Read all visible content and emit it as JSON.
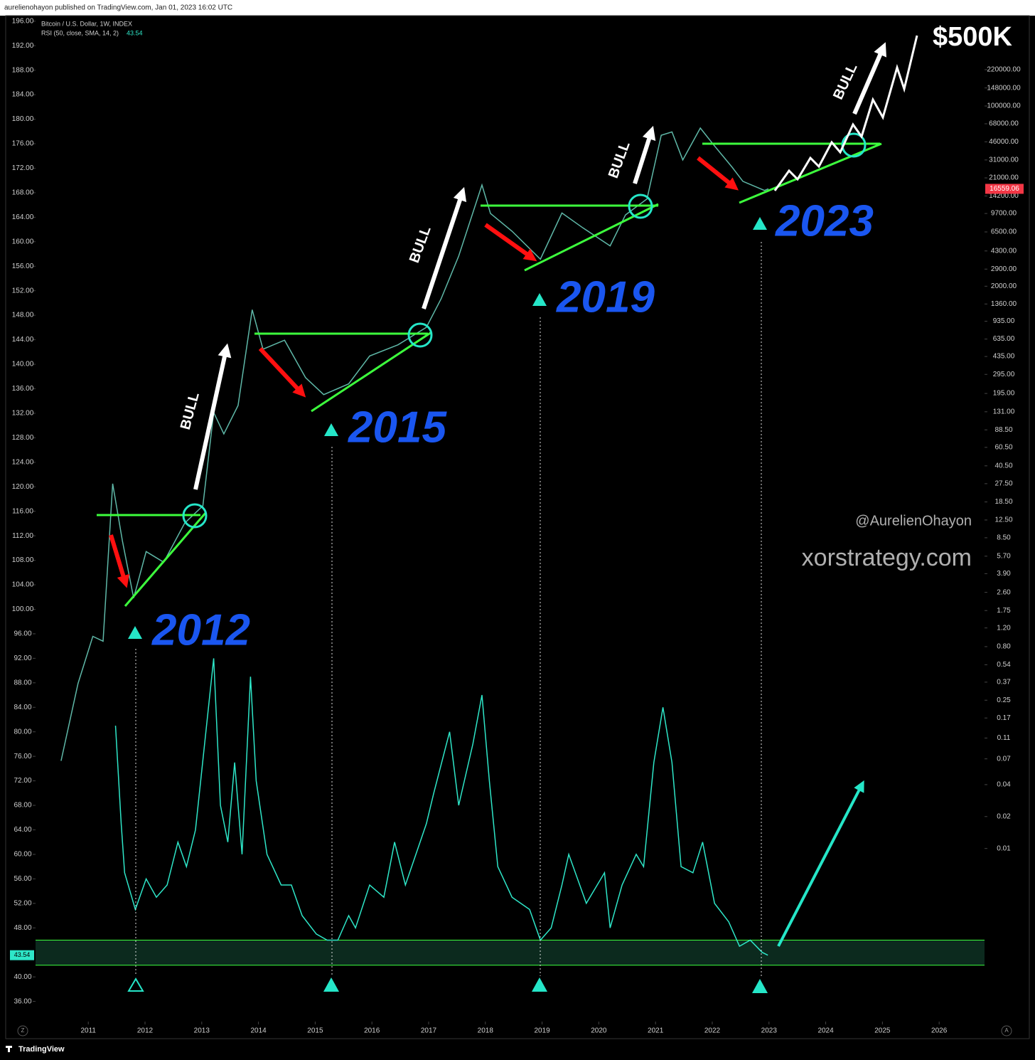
{
  "header": "aurelienohayon published on TradingView.com, Jan 01, 2023 16:02 UTC",
  "brand": "TradingView",
  "corner_buttons": [
    "Z",
    "A"
  ],
  "chart_data": {
    "type": "line",
    "xlim": [
      2010.07,
      2026.8
    ],
    "xticks": [
      2011,
      2012,
      2013,
      2014,
      2015,
      2016,
      2017,
      2018,
      2019,
      2020,
      2021,
      2022,
      2023,
      2024,
      2025,
      2026
    ],
    "ylim": [
      33.4,
      196.9
    ],
    "yticks": [
      {
        "value": 196,
        "label": "196.00"
      },
      {
        "value": 192,
        "label": "192.00"
      },
      {
        "value": 188,
        "label": "188.00"
      },
      {
        "value": 184,
        "label": "184.00"
      },
      {
        "value": 180,
        "label": "180.00"
      },
      {
        "value": 176,
        "label": "176.00"
      },
      {
        "value": 172,
        "label": "172.00"
      },
      {
        "value": 168,
        "label": "168.00"
      },
      {
        "value": 164,
        "label": "164.00"
      },
      {
        "value": 160,
        "label": "160.00"
      },
      {
        "value": 156,
        "label": "156.00"
      },
      {
        "value": 152,
        "label": "152.00"
      },
      {
        "value": 148,
        "label": "148.00"
      },
      {
        "value": 144,
        "label": "144.00"
      },
      {
        "value": 140,
        "label": "140.00"
      },
      {
        "value": 136,
        "label": "136.00"
      },
      {
        "value": 132,
        "label": "132.00"
      },
      {
        "value": 128,
        "label": "128.00"
      },
      {
        "value": 124,
        "label": "124.00"
      },
      {
        "value": 120,
        "label": "120.00"
      },
      {
        "value": 116,
        "label": "116.00"
      },
      {
        "value": 112,
        "label": "112.00"
      },
      {
        "value": 108,
        "label": "108.00"
      },
      {
        "value": 104,
        "label": "104.00"
      },
      {
        "value": 100,
        "label": "100.00"
      },
      {
        "value": 96,
        "label": "96.00"
      },
      {
        "value": 92,
        "label": "92.00"
      },
      {
        "value": 88,
        "label": "88.00"
      },
      {
        "value": 84,
        "label": "84.00"
      },
      {
        "value": 80,
        "label": "80.00"
      },
      {
        "value": 76,
        "label": "76.00"
      },
      {
        "value": 72,
        "label": "72.00"
      },
      {
        "value": 68,
        "label": "68.00"
      },
      {
        "value": 64,
        "label": "64.00"
      },
      {
        "value": 60,
        "label": "60.00"
      },
      {
        "value": 56,
        "label": "56.00"
      },
      {
        "value": 52,
        "label": "52.00"
      },
      {
        "value": 48,
        "label": "48.00"
      },
      {
        "value": 40,
        "label": "40.00"
      },
      {
        "value": 36,
        "label": "36.00"
      }
    ],
    "y2lim": [
      0.000256,
      711000
    ],
    "y2log": true,
    "y2ticks": [
      {
        "value": 220000,
        "label": "220000.00"
      },
      {
        "value": 148000,
        "label": "148000.00"
      },
      {
        "value": 100000,
        "label": "100000.00"
      },
      {
        "value": 68000,
        "label": "68000.00"
      },
      {
        "value": 46000,
        "label": "46000.00"
      },
      {
        "value": 31000,
        "label": "31000.00"
      },
      {
        "value": 21000,
        "label": "21000.00"
      },
      {
        "value": 14200,
        "label": "14200.00"
      },
      {
        "value": 9700,
        "label": "9700.00"
      },
      {
        "value": 6500,
        "label": "6500.00"
      },
      {
        "value": 4300,
        "label": "4300.00"
      },
      {
        "value": 2900,
        "label": "2900.00"
      },
      {
        "value": 2000,
        "label": "2000.00"
      },
      {
        "value": 1360,
        "label": "1360.00"
      },
      {
        "value": 935,
        "label": "935.00"
      },
      {
        "value": 635,
        "label": "635.00"
      },
      {
        "value": 435,
        "label": "435.00"
      },
      {
        "value": 295,
        "label": "295.00"
      },
      {
        "value": 195,
        "label": "195.00"
      },
      {
        "value": 131,
        "label": "131.00"
      },
      {
        "value": 88.5,
        "label": "88.50"
      },
      {
        "value": 60.5,
        "label": "60.50"
      },
      {
        "value": 40.5,
        "label": "40.50"
      },
      {
        "value": 27.5,
        "label": "27.50"
      },
      {
        "value": 18.5,
        "label": "18.50"
      },
      {
        "value": 12.5,
        "label": "12.50"
      },
      {
        "value": 8.5,
        "label": "8.50"
      },
      {
        "value": 5.7,
        "label": "5.70"
      },
      {
        "value": 3.9,
        "label": "3.90"
      },
      {
        "value": 2.6,
        "label": "2.60"
      },
      {
        "value": 1.75,
        "label": "1.75"
      },
      {
        "value": 1.2,
        "label": "1.20"
      },
      {
        "value": 0.8,
        "label": "0.80"
      },
      {
        "value": 0.54,
        "label": "0.54"
      },
      {
        "value": 0.37,
        "label": "0.37"
      },
      {
        "value": 0.25,
        "label": "0.25"
      },
      {
        "value": 0.17,
        "label": "0.17"
      },
      {
        "value": 0.11,
        "label": "0.11"
      },
      {
        "value": 0.07,
        "label": "0.07"
      },
      {
        "value": 0.04,
        "label": "0.04"
      },
      {
        "value": 0.02,
        "label": "0.02"
      },
      {
        "value": 0.01,
        "label": "0.01"
      }
    ],
    "rsi_band": [
      41.9,
      46
    ],
    "series": [
      {
        "name": "Bitcoin / U.S. Dollar, 1W, INDEX",
        "axis": "y2",
        "color": "#5fb8a8",
        "last_value": 16559.06,
        "last_color": "#f23645",
        "x": [
          2010.52,
          2010.82,
          2011.08,
          2011.26,
          2011.43,
          2011.6,
          2011.8,
          2012.02,
          2012.33,
          2012.7,
          2013.02,
          2013.21,
          2013.39,
          2013.64,
          2013.89,
          2014.08,
          2014.46,
          2014.83,
          2015.15,
          2015.59,
          2015.96,
          2016.46,
          2016.96,
          2017.22,
          2017.53,
          2017.94,
          2018.09,
          2018.47,
          2018.97,
          2019.35,
          2019.72,
          2020.2,
          2020.47,
          2020.85,
          2021.1,
          2021.29,
          2021.48,
          2021.79,
          2022.04,
          2022.35,
          2022.54,
          2022.92,
          2022.99
        ],
        "values": [
          0.067,
          0.36,
          1.0,
          0.9,
          27.5,
          8,
          2.3,
          6.3,
          5,
          11.7,
          17,
          129,
          81,
          150,
          1200,
          510,
          620,
          275,
          190,
          240,
          440,
          560,
          820,
          1520,
          3850,
          18000,
          9700,
          6600,
          3600,
          9800,
          7100,
          4800,
          9400,
          13300,
          53000,
          57000,
          31000,
          62000,
          42000,
          26500,
          19500,
          16000,
          16559.06
        ]
      },
      {
        "name": "RSI (50, close, SMA, 14, 2)",
        "color": "#2ee6c8",
        "last_value": 43.54,
        "x": [
          2011.48,
          2011.58,
          2011.64,
          2011.83,
          2012.02,
          2012.2,
          2012.39,
          2012.58,
          2012.73,
          2012.89,
          2013.21,
          2013.33,
          2013.46,
          2013.58,
          2013.71,
          2013.86,
          2013.96,
          2014.15,
          2014.4,
          2014.58,
          2014.77,
          2015.02,
          2015.21,
          2015.4,
          2015.59,
          2015.71,
          2015.96,
          2016.21,
          2016.4,
          2016.59,
          2016.96,
          2017.09,
          2017.37,
          2017.53,
          2017.78,
          2017.94,
          2018.07,
          2018.22,
          2018.47,
          2018.78,
          2018.97,
          2019.16,
          2019.35,
          2019.47,
          2019.78,
          2020.1,
          2020.2,
          2020.41,
          2020.66,
          2020.79,
          2020.97,
          2021.13,
          2021.29,
          2021.45,
          2021.66,
          2021.83,
          2022.04,
          2022.29,
          2022.48,
          2022.67,
          2022.88,
          2022.98
        ],
        "values": [
          81,
          65,
          57,
          51,
          56,
          53,
          55,
          62,
          58,
          64,
          92,
          68,
          62,
          75,
          60,
          89,
          72,
          60,
          55,
          55,
          50,
          47,
          46,
          46,
          50,
          48,
          55,
          53,
          62,
          55,
          65,
          70,
          80,
          68,
          78,
          86,
          72,
          58,
          53,
          51,
          46,
          48,
          55,
          60,
          52,
          57,
          48,
          55,
          60,
          58,
          75,
          84,
          75,
          58,
          57,
          62,
          52,
          49,
          45,
          46,
          44,
          43.54
        ]
      }
    ],
    "annotations": [
      "2012",
      "2015",
      "2019",
      "2023",
      "BULL",
      "$500K",
      "@AurelienOhayon",
      "xorstrategy.com"
    ]
  }
}
